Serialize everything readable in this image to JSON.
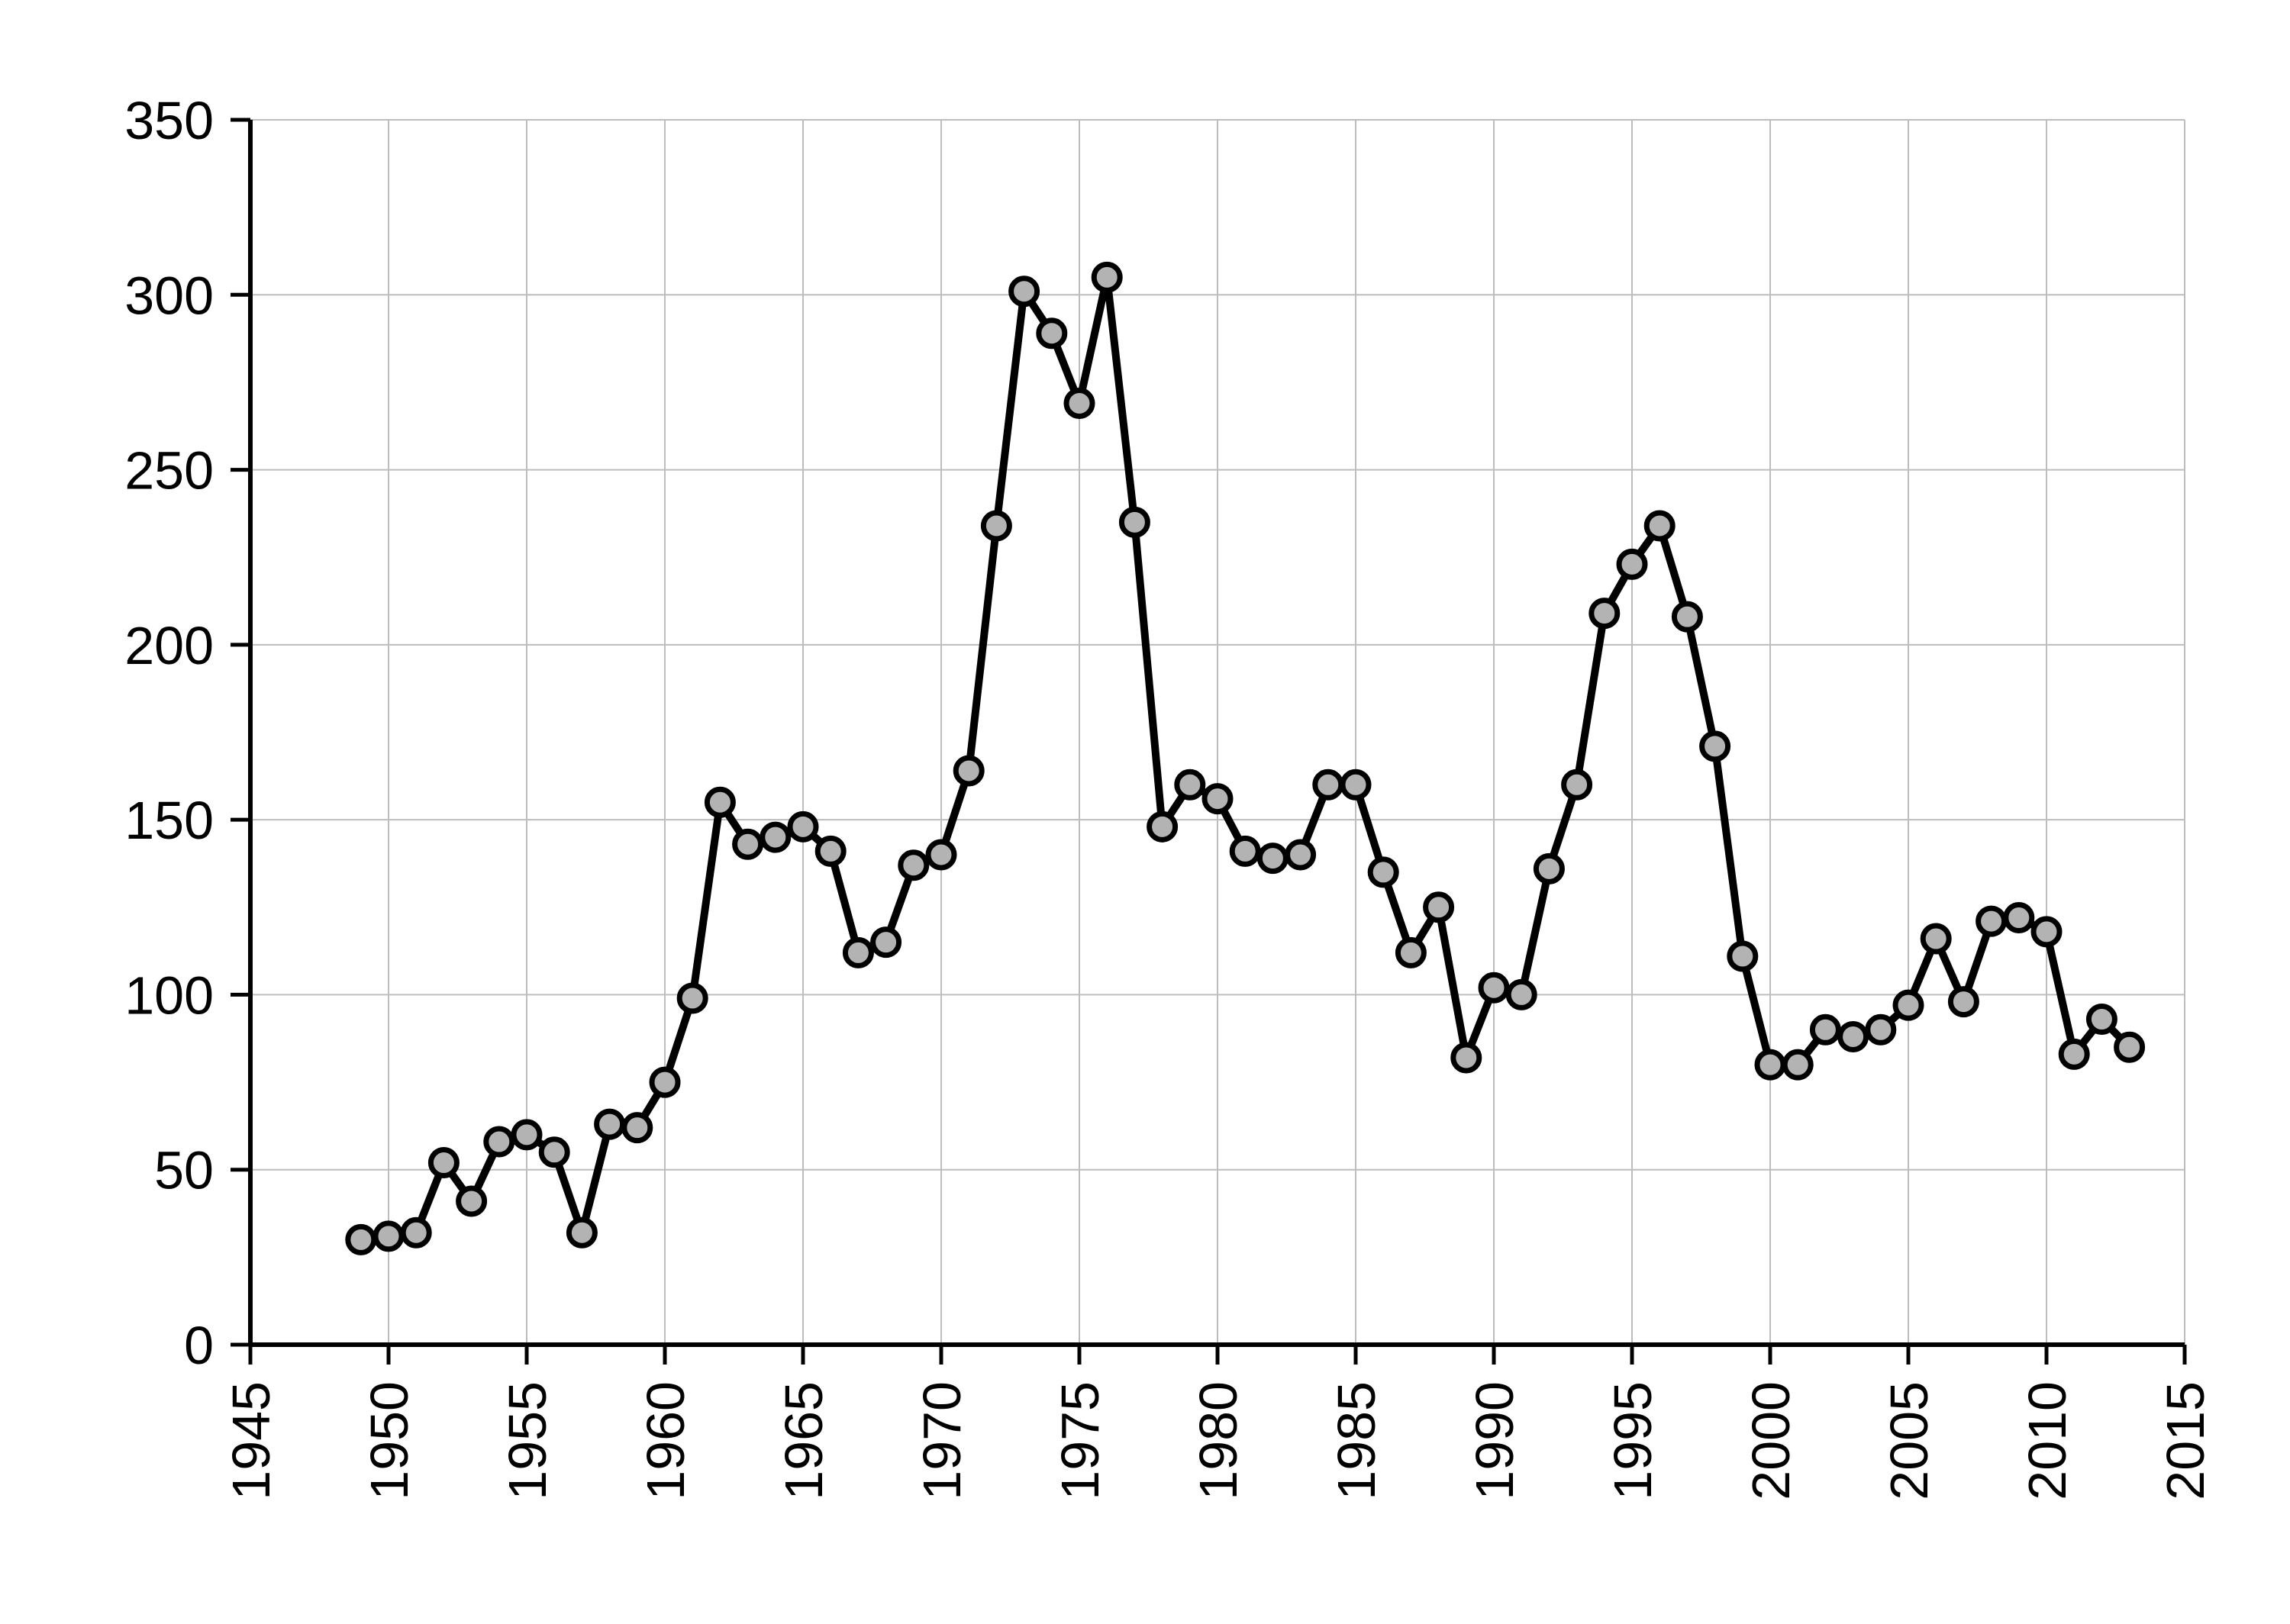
{
  "chart_data": {
    "type": "line",
    "title": "",
    "xlabel": "",
    "ylabel": "",
    "xlim": [
      1945,
      2015
    ],
    "ylim": [
      0,
      350
    ],
    "x_ticks": [
      "1945",
      "1950",
      "1955",
      "1960",
      "1965",
      "1970",
      "1975",
      "1980",
      "1985",
      "1990",
      "1995",
      "2000",
      "2005",
      "2010",
      "2015"
    ],
    "y_ticks": [
      "0",
      "50",
      "100",
      "150",
      "200",
      "250",
      "300",
      "350"
    ],
    "grid": true,
    "legend": "none",
    "colors": {
      "line": "#000000",
      "marker_fill": "#b3b3b3",
      "grid": "#bdbdbd"
    },
    "series": [
      {
        "x": [
          1949,
          1950,
          1951,
          1952,
          1953,
          1954,
          1955,
          1956,
          1957,
          1958,
          1959,
          1960,
          1961,
          1962,
          1963,
          1964,
          1965,
          1966,
          1967,
          1968,
          1969,
          1970,
          1971,
          1972,
          1973,
          1974,
          1975,
          1976,
          1977,
          1978,
          1979,
          1980,
          1981,
          1982,
          1983,
          1984,
          1985,
          1986,
          1987,
          1988,
          1989,
          1990,
          1991,
          1992,
          1993,
          1994,
          1995,
          1996,
          1997,
          1998,
          1999,
          2000,
          2001,
          2002,
          2003,
          2004,
          2005,
          2006,
          2007,
          2008,
          2009,
          2010,
          2011,
          2012,
          2013
        ],
        "values": [
          30,
          31,
          32,
          52,
          41,
          58,
          60,
          55,
          32,
          63,
          62,
          75,
          99,
          155,
          143,
          145,
          148,
          141,
          112,
          115,
          137,
          140,
          164,
          234,
          301,
          289,
          269,
          305,
          235,
          148,
          160,
          156,
          141,
          139,
          140,
          160,
          160,
          135,
          112,
          125,
          82,
          102,
          100,
          136,
          160,
          209,
          223,
          234,
          208,
          171,
          111,
          80,
          80,
          90,
          88,
          90,
          97,
          116,
          98,
          121,
          122,
          118,
          83,
          93,
          85
        ]
      }
    ]
  }
}
